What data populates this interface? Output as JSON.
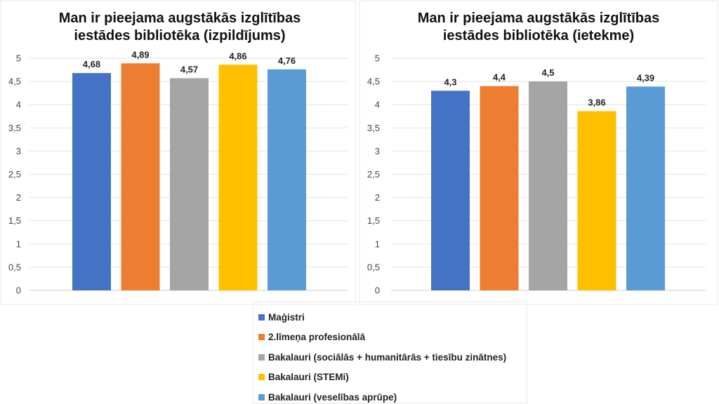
{
  "chart_data": [
    {
      "type": "bar",
      "title_lines": [
        "Man ir pieejama augstākās izglītības",
        "iestādes bibliotēka (izpildījums)"
      ],
      "ylim": [
        0,
        5
      ],
      "yticks": [
        "0",
        "0,5",
        "1",
        "1,5",
        "2",
        "2,5",
        "3",
        "3,5",
        "4",
        "4,5",
        "5"
      ],
      "grid": true,
      "categories": [
        "Maģistri",
        "2.līmeņa profesionālā",
        "Bakalauri (sociālās + humanitārās + tiesību zinātnes)",
        "Bakalauri (STEMi)",
        "Bakalauri (veselības aprūpe)"
      ],
      "values": [
        4.68,
        4.89,
        4.57,
        4.86,
        4.76
      ],
      "labels": [
        "4,68",
        "4,89",
        "4,57",
        "4,86",
        "4,76"
      ]
    },
    {
      "type": "bar",
      "title_lines": [
        "Man ir pieejama augstākās izglītības",
        "iestādes bibliotēka (ietekme)"
      ],
      "ylim": [
        0,
        5
      ],
      "yticks": [
        "0",
        "0,5",
        "1",
        "1,5",
        "2",
        "2,5",
        "3",
        "3,5",
        "4",
        "4,5",
        "5"
      ],
      "grid": true,
      "categories": [
        "Maģistri",
        "2.līmeņa profesionālā",
        "Bakalauri (sociālās + humanitārās + tiesību zinātnes)",
        "Bakalauri (STEMi)",
        "Bakalauri (veselības aprūpe)"
      ],
      "values": [
        4.3,
        4.4,
        4.5,
        3.86,
        4.39
      ],
      "labels": [
        "4,3",
        "4,4",
        "4,5",
        "3,86",
        "4,39"
      ]
    }
  ],
  "legend": {
    "placement": "bottom-center",
    "items": [
      "Maģistri",
      "2.līmeņa profesionālā",
      "Bakalauri (sociālās + humanitārās + tiesību zinātnes)",
      "Bakalauri (STEMi)",
      "Bakalauri (veselības aprūpe)"
    ]
  },
  "colors": [
    "#4472c4",
    "#ed7d31",
    "#a5a5a5",
    "#ffc000",
    "#5b9bd5"
  ]
}
